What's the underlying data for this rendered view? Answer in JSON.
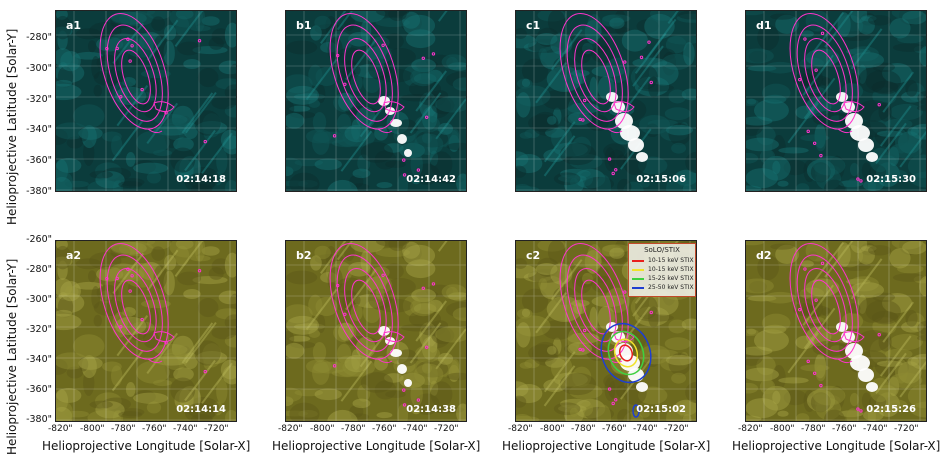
{
  "axes": {
    "ylabel": "Helioprojective Latitude [Solar-Y]",
    "xlabel": "Helioprojective Longitude [Solar-X]",
    "yticks_top": [
      "-280\"",
      "-300\"",
      "-320\"",
      "-340\"",
      "-360\"",
      "-380\""
    ],
    "yticks_bottom": [
      "-260\"",
      "-280\"",
      "-300\"",
      "-320\"",
      "-340\"",
      "-360\"",
      "-380\""
    ],
    "xticks": [
      "-820\"",
      "-800\"",
      "-780\"",
      "-760\"",
      "-740\"",
      "-720\""
    ]
  },
  "colors": {
    "aia_teal": "#1fc7c7",
    "aia_olive": "#8c8a2a",
    "contour_magenta": "#ff33cc",
    "stix_red": "#e8201c",
    "stix_yellow": "#f0e32a",
    "stix_green": "#3fd03f",
    "stix_blue": "#1e3fd0"
  },
  "panels_top": [
    {
      "label": "a1",
      "time": "02:14:18",
      "flare": 0
    },
    {
      "label": "b1",
      "time": "02:14:42",
      "flare": 1
    },
    {
      "label": "c1",
      "time": "02:15:06",
      "flare": 2
    },
    {
      "label": "d1",
      "time": "02:15:30",
      "flare": 2
    }
  ],
  "panels_bottom": [
    {
      "label": "a2",
      "time": "02:14:14",
      "flare": 0
    },
    {
      "label": "b2",
      "time": "02:14:38",
      "flare": 1
    },
    {
      "label": "c2",
      "time": "02:15:02",
      "flare": 2
    },
    {
      "label": "d2",
      "time": "02:15:26",
      "flare": 2
    }
  ],
  "legend": {
    "title": "SoLO/STIX",
    "entries": [
      {
        "label": "10-15 keV STIX",
        "color": "#e8201c"
      },
      {
        "label": "10-15 keV STIX",
        "color": "#f0e32a"
      },
      {
        "label": "15-25 keV STIX",
        "color": "#3fd03f"
      },
      {
        "label": "25-50 keV STIX",
        "color": "#1e3fd0"
      }
    ]
  }
}
